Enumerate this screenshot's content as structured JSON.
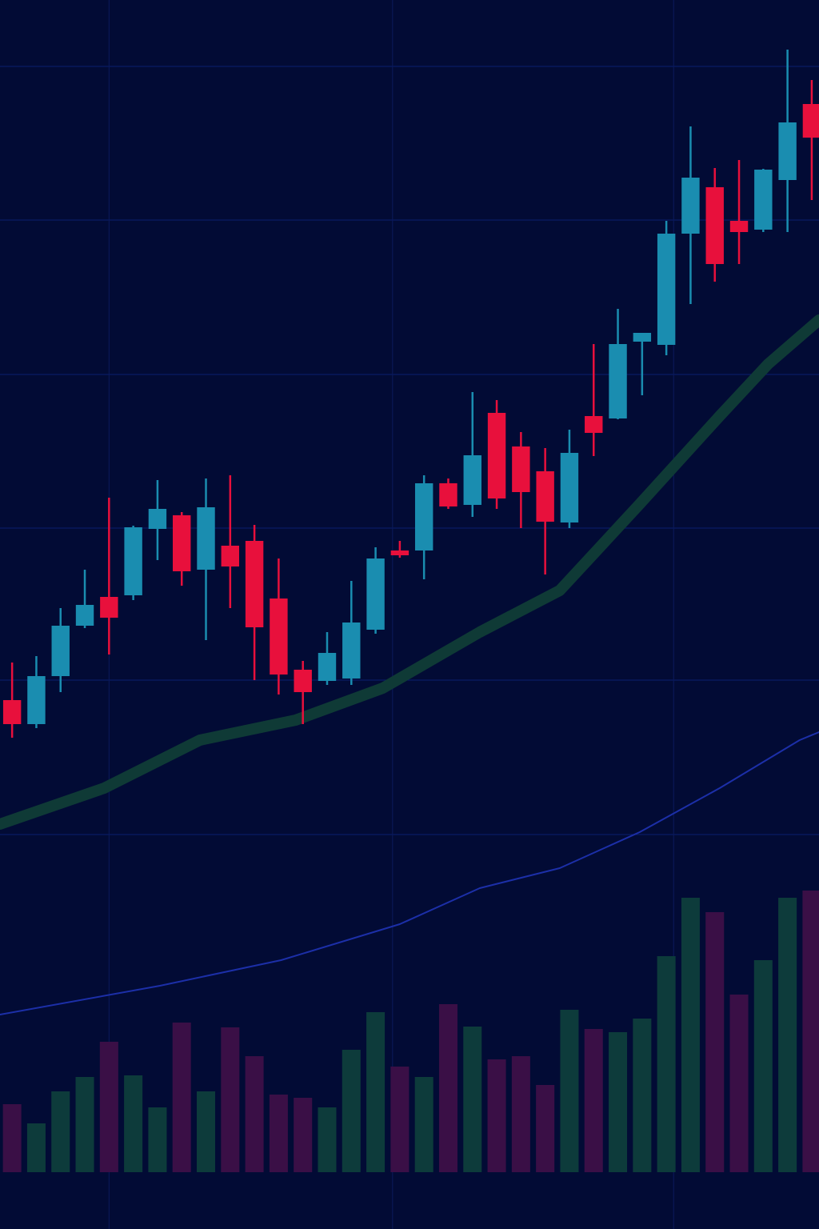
{
  "chart_data": {
    "type": "candlestick",
    "x": [
      0,
      1,
      2,
      3,
      4,
      5,
      6,
      7,
      8,
      9,
      10,
      11,
      12,
      13,
      14,
      15,
      16,
      17,
      18,
      19,
      20,
      21,
      22,
      23,
      24,
      25,
      26,
      27,
      28,
      29,
      30,
      31,
      32,
      33
    ],
    "open": [
      661,
      631,
      691,
      754,
      790,
      792,
      875,
      892,
      824,
      854,
      860,
      788,
      699,
      685,
      688,
      749,
      848,
      848,
      932,
      905,
      1020,
      978,
      947,
      883,
      1016,
      1013,
      1109,
      1105,
      1244,
      1302,
      1260,
      1249,
      1311,
      1406
    ],
    "close": [
      631,
      691,
      754,
      780,
      764,
      877,
      900,
      822,
      902,
      828,
      752,
      693,
      671,
      720,
      758,
      838,
      842,
      932,
      903,
      967,
      913,
      921,
      884,
      970,
      995,
      1106,
      1120,
      1244,
      1314,
      1206,
      1246,
      1324,
      1383,
      1364
    ],
    "high": [
      708,
      716,
      776,
      824,
      914,
      879,
      936,
      896,
      938,
      942,
      880,
      838,
      710,
      746,
      810,
      852,
      860,
      942,
      938,
      1046,
      1036,
      996,
      976,
      999,
      1106,
      1150,
      1120,
      1260,
      1378,
      1326,
      1336,
      1325,
      1474,
      1436
    ],
    "low": [
      614,
      626,
      671,
      751,
      718,
      786,
      836,
      804,
      736,
      776,
      686,
      668,
      631,
      680,
      680,
      744,
      839,
      812,
      900,
      890,
      900,
      876,
      818,
      876,
      966,
      1012,
      1042,
      1092,
      1156,
      1184,
      1206,
      1246,
      1246,
      1286
    ],
    "volume": [
      85,
      61,
      101,
      119,
      163,
      121,
      81,
      187,
      101,
      181,
      145,
      97,
      93,
      81,
      153,
      200,
      132,
      119,
      210,
      182,
      141,
      145,
      109,
      203,
      179,
      175,
      192,
      270,
      343,
      325,
      222,
      265,
      343,
      352
    ],
    "up_color": "#1a8db0",
    "down_color": "#e8103c",
    "volume_up_color": "#0d3b3b",
    "volume_down_color": "#3a0f46",
    "averages": [
      {
        "color": "#0f3a36",
        "x": [
          -0.5,
          3.8,
          7.75,
          11.7,
          15.3,
          19.3,
          22.6,
          25.9,
          29.2,
          31.2,
          33.3
        ],
        "values": [
          506,
          551,
          611,
          636,
          676,
          746,
          798,
          906,
          1016,
          1081,
          1136
        ]
      },
      {
        "color": "#1c2fa8",
        "x": [
          -0.5,
          6.1,
          11.1,
          16.0,
          19.3,
          22.6,
          25.9,
          29.2,
          32.5,
          33.3
        ],
        "values": [
          268,
          304,
          336,
          381,
          426,
          451,
          496,
          551,
          611,
          621
        ]
      }
    ],
    "xlim": [
      -0.5,
      33.3
    ],
    "ylim": [
      0,
      1536
    ],
    "volume_ylim": [
      0,
      1465
    ],
    "xticks": [
      4.0,
      15.7,
      27.3
    ],
    "yticks": [
      493,
      686,
      876,
      1068,
      1261,
      1453
    ],
    "grid": true
  }
}
